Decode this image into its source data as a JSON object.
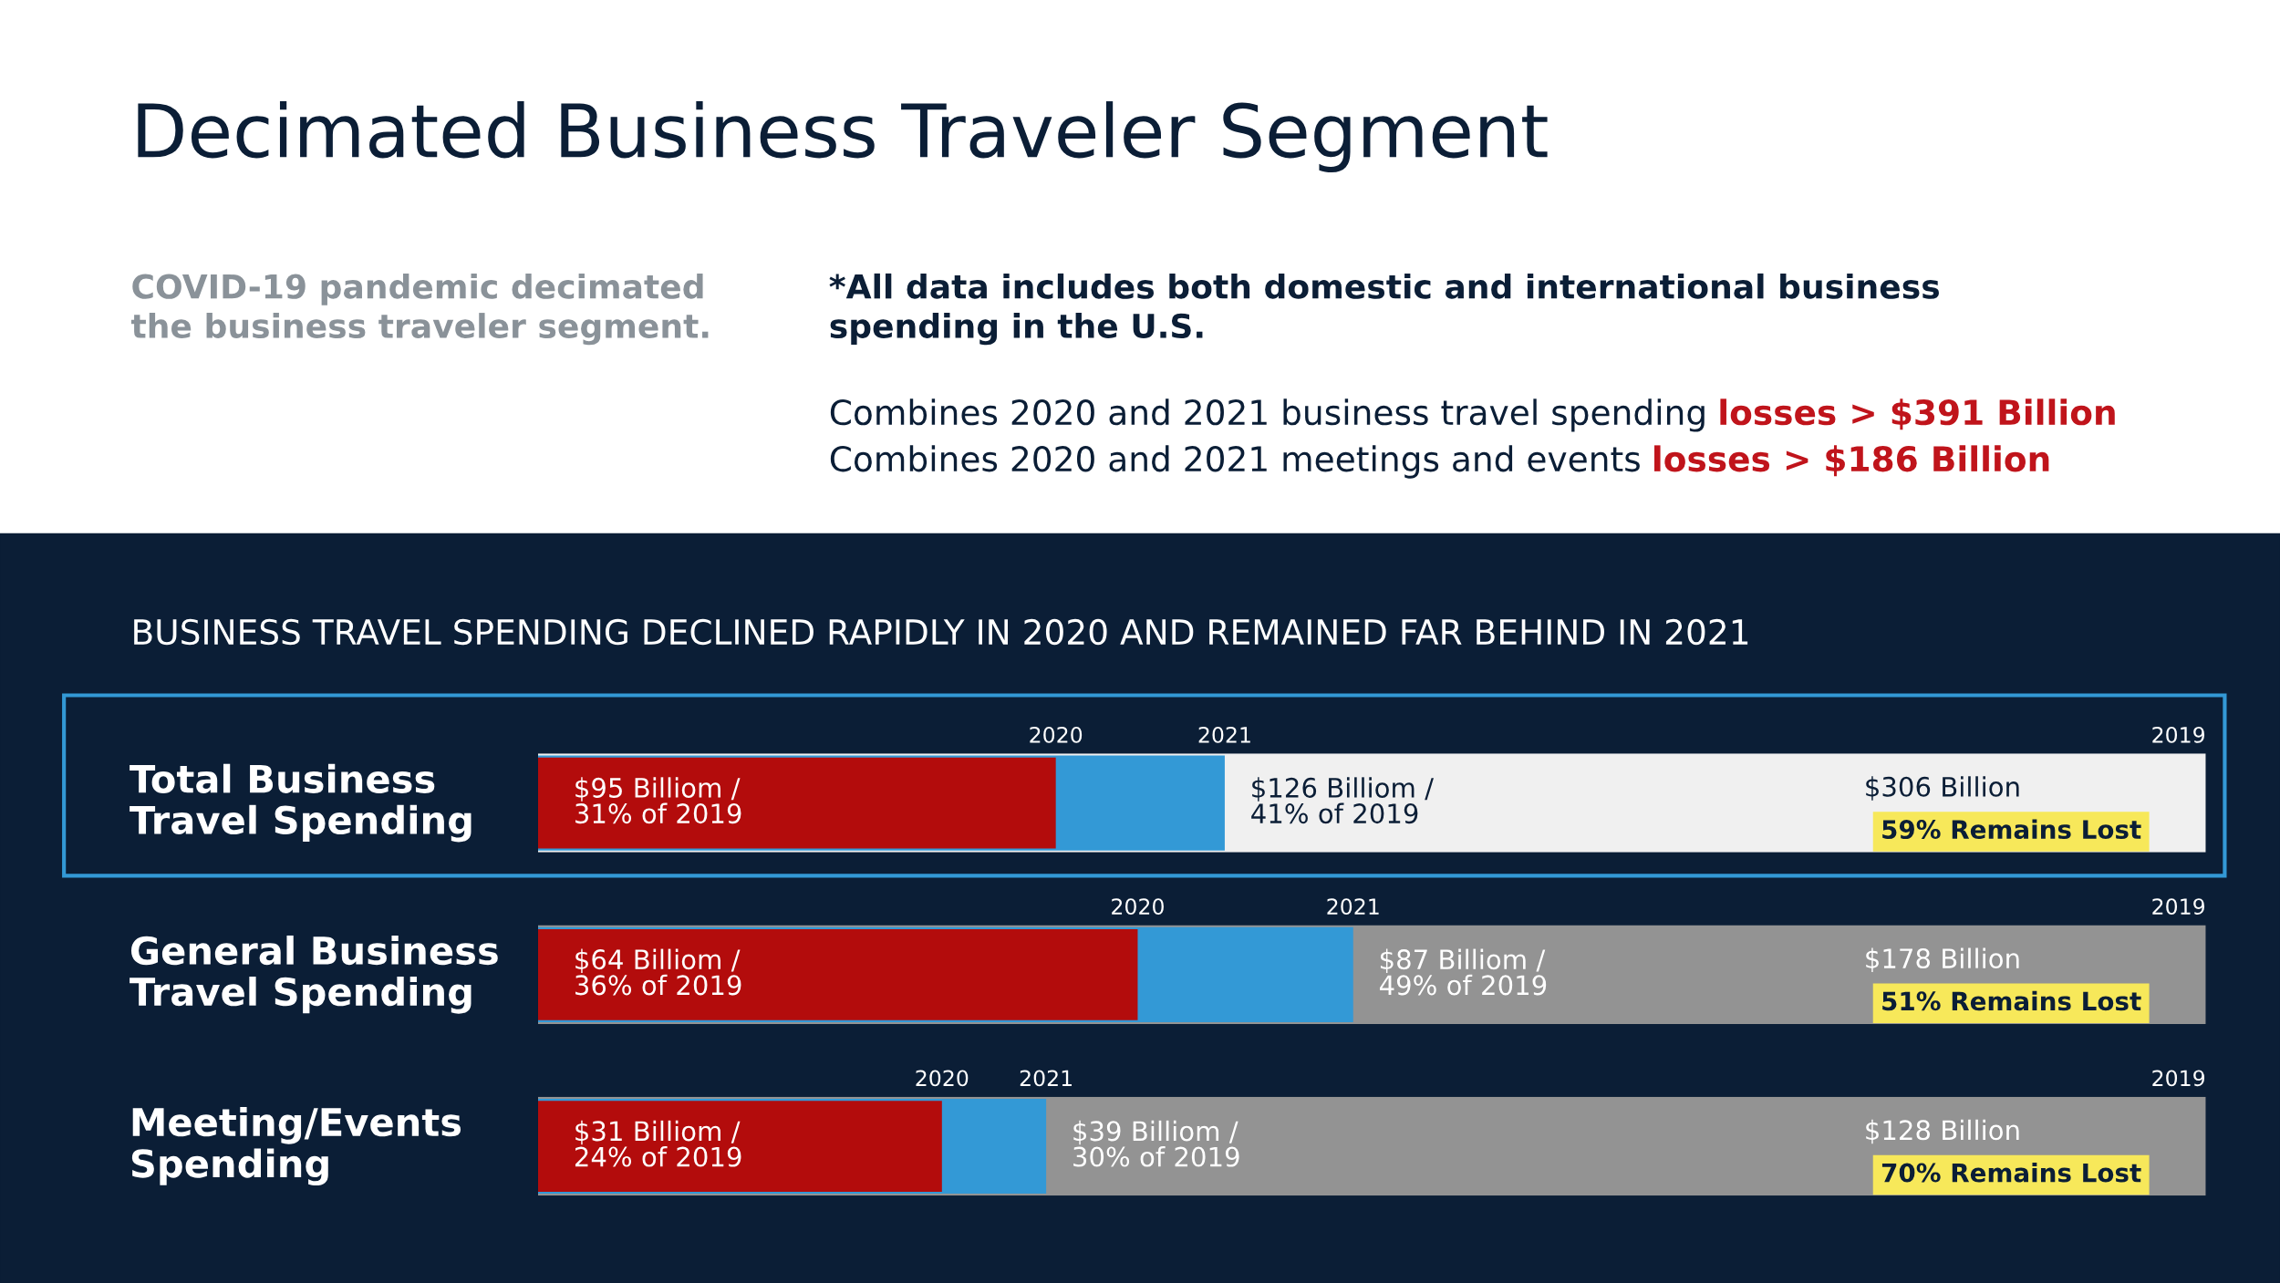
{
  "chart_data": [
    {
      "type": "other",
      "title": "Decimated Business Traveler Segment",
      "annotations": [
        "COVID-19 pandemic decimated\nthe business traveler segment.",
        "*All data includes both domestic and international business\nspending in the U.S.",
        "Combines 2020 and 2021 business travel spending",
        "losses > $391 Billion",
        "Combines 2020 and 2021 meetings and events",
        "losses > $186 Billion"
      ]
    },
    {
      "type": "bar",
      "orientation": "horizontal",
      "title": "BUSINESS TRAVEL SPENDING DECLINED RAPIDLY IN 2020 AND REMAINED FAR BEHIND IN 2021",
      "categories": [
        "Total Business\nTravel Spending"
      ],
      "xlim": [
        0,
        306
      ],
      "tick_labels": false,
      "series": [
        {
          "name": "2020",
          "color": "#b30c0c",
          "values": [
            95
          ],
          "value_labels": [
            "$95 Billiom /\n31% of 2019"
          ]
        },
        {
          "name": "2021",
          "color": "#3399d6",
          "values": [
            126
          ],
          "value_labels": [
            "$126 Billiom /\n41% of 2019"
          ]
        },
        {
          "name": "2019",
          "color": "#f0f0f0",
          "values": [
            306
          ],
          "value_labels": [
            "$306 Billion"
          ]
        }
      ],
      "annotations": [
        "59% Remains Lost"
      ]
    },
    {
      "type": "bar",
      "orientation": "horizontal",
      "categories": [
        "General Business\nTravel Spending"
      ],
      "xlim": [
        0,
        178
      ],
      "tick_labels": false,
      "series": [
        {
          "name": "2020",
          "color": "#b30c0c",
          "values": [
            64
          ],
          "value_labels": [
            "$64 Billiom /\n36% of 2019"
          ]
        },
        {
          "name": "2021",
          "color": "#3399d6",
          "values": [
            87
          ],
          "value_labels": [
            "$87 Billiom /\n49% of 2019"
          ]
        },
        {
          "name": "2019",
          "color": "#939393",
          "values": [
            178
          ],
          "value_labels": [
            "$178 Billion"
          ]
        }
      ],
      "annotations": [
        "51% Remains Lost"
      ]
    },
    {
      "type": "bar",
      "orientation": "horizontal",
      "categories": [
        "Meeting/Events\nSpending"
      ],
      "xlim": [
        0,
        128
      ],
      "tick_labels": false,
      "series": [
        {
          "name": "2020",
          "color": "#b30c0c",
          "values": [
            31
          ],
          "value_labels": [
            "$31 Billiom /\n24% of 2019"
          ]
        },
        {
          "name": "2021",
          "color": "#3399d6",
          "values": [
            39
          ],
          "value_labels": [
            "$39 Billiom /\n30% of 2019"
          ]
        },
        {
          "name": "2019",
          "color": "#939393",
          "values": [
            128
          ],
          "value_labels": [
            "$128 Billion"
          ]
        }
      ],
      "annotations": [
        "70% Remains Lost"
      ]
    }
  ]
}
